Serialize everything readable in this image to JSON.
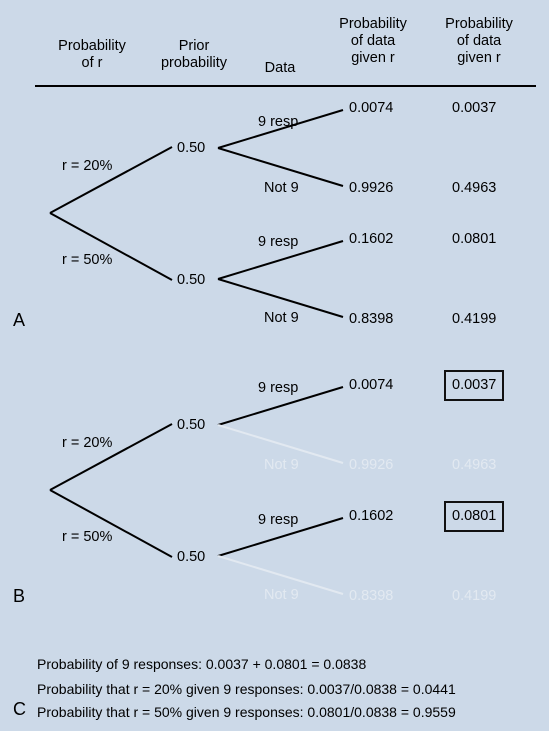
{
  "header": {
    "col1": [
      "Probability",
      "of r"
    ],
    "col2": [
      "Prior",
      "probability"
    ],
    "col3": [
      "Data"
    ],
    "col4": [
      "Probability",
      "of data",
      "given r"
    ],
    "col5": [
      "Probability",
      "of data",
      "given r"
    ]
  },
  "panel_a": {
    "label": "A",
    "branch_top_label": "r = 20%",
    "branch_bottom_label": "r = 50%",
    "prior_top": "0.50",
    "prior_bottom": "0.50",
    "rows": [
      {
        "data": "9 resp",
        "likelihood": "0.0074",
        "joint": "0.0037"
      },
      {
        "data": "Not 9",
        "likelihood": "0.9926",
        "joint": "0.4963"
      },
      {
        "data": "9 resp",
        "likelihood": "0.1602",
        "joint": "0.0801"
      },
      {
        "data": "Not 9",
        "likelihood": "0.8398",
        "joint": "0.4199"
      }
    ]
  },
  "panel_b": {
    "label": "B",
    "branch_top_label": "r = 20%",
    "branch_bottom_label": "r = 50%",
    "prior_top": "0.50",
    "prior_bottom": "0.50",
    "rows": [
      {
        "data": "9 resp",
        "likelihood": "0.0074",
        "joint": "0.0037"
      },
      {
        "data": "Not 9",
        "likelihood": "0.9926",
        "joint": "0.4963"
      },
      {
        "data": "9 resp",
        "likelihood": "0.1602",
        "joint": "0.0801"
      },
      {
        "data": "Not 9",
        "likelihood": "0.8398",
        "joint": "0.4199"
      }
    ]
  },
  "panel_c": {
    "label": "C",
    "lines": [
      "Probability of 9 responses: 0.0037 + 0.0801 = 0.0838",
      "Probability that r = 20% given 9 responses: 0.0037/0.0838 = 0.0441",
      "Probability that r = 50% given 9 responses: 0.0801/0.0838 = 0.9559"
    ]
  }
}
